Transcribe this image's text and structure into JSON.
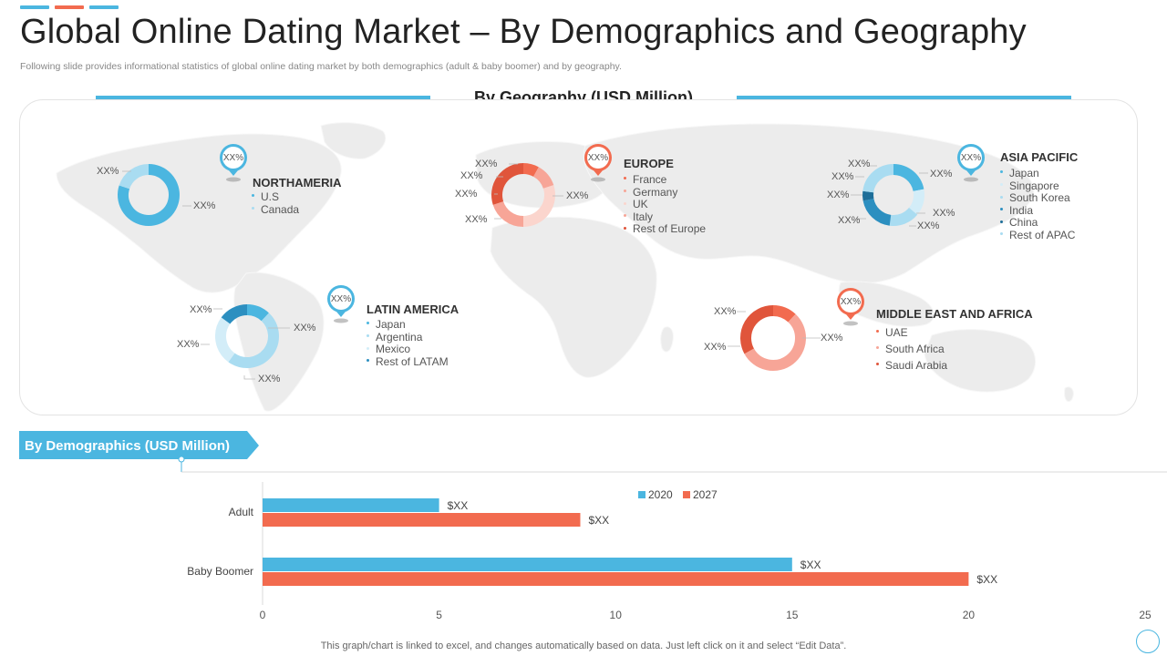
{
  "colors": {
    "blue": "#4bb6e0",
    "blue_dark": "#2c8fc0",
    "blue_darker": "#1d6e99",
    "blue_light": "#a9dcf1",
    "blue_pale": "#d3edf8",
    "red": "#f26b4f",
    "red_light": "#f7a597",
    "red_pale": "#fbd5cd",
    "map": "#ececec"
  },
  "header": {
    "title": "Global Online Dating Market – By Demographics and Geography",
    "subtitle": "Following slide provides informational statistics of global online dating market by both demographics (adult & baby boomer) and by geography."
  },
  "geography": {
    "heading": "By Geography (USD Million)",
    "regions": {
      "north_america": {
        "title": "NORTHAMERIA",
        "pin": "XX%",
        "items": [
          "U.S",
          "Canada"
        ],
        "item_colors": [
          "#4bb6e0",
          "#a9dcf1"
        ],
        "shares": [
          80,
          20
        ],
        "labels": [
          "XX%",
          "XX%"
        ]
      },
      "europe": {
        "title": "EUROPE",
        "pin": "XX%",
        "items": [
          "France",
          "Germany",
          "UK",
          "Italy",
          "Rest of Europe"
        ],
        "item_colors": [
          "#f26b4f",
          "#f7a597",
          "#fbd5cd",
          "#f7a597",
          "#e0553b"
        ],
        "shares": [
          8,
          12,
          30,
          20,
          30
        ],
        "labels": [
          "XX%",
          "XX%",
          "XX%",
          "XX%",
          "XX%"
        ]
      },
      "asia_pacific": {
        "title": "ASIA PACIFIC",
        "pin": "XX%",
        "items": [
          "Japan",
          "Singapore",
          "South Korea",
          "India",
          "China",
          "Rest of APAC"
        ],
        "item_colors": [
          "#4bb6e0",
          "#d3edf8",
          "#a9dcf1",
          "#2c8fc0",
          "#1d6e99",
          "#a9dcf1"
        ],
        "shares": [
          22,
          14,
          16,
          20,
          5,
          23
        ],
        "labels": [
          "XX%",
          "XX%",
          "XX%",
          "XX%",
          "XX%",
          "XX%"
        ]
      },
      "latin_america": {
        "title": "LATIN AMERICA",
        "pin": "XX%",
        "items": [
          "Japan",
          "Argentina",
          "Mexico",
          "Rest of LATAM"
        ],
        "item_colors": [
          "#4bb6e0",
          "#a9dcf1",
          "#d3edf8",
          "#2c8fc0"
        ],
        "shares": [
          12,
          48,
          25,
          15
        ],
        "labels": [
          "XX%",
          "XX%",
          "XX%",
          "XX%"
        ]
      },
      "middle_east_africa": {
        "title": "MIDDLE EAST AND AFRICA",
        "pin": "XX%",
        "items": [
          "UAE",
          "South Africa",
          "Saudi Arabia"
        ],
        "item_colors": [
          "#f26b4f",
          "#f7a597",
          "#e0553b"
        ],
        "shares": [
          12,
          55,
          33
        ],
        "labels": [
          "XX%",
          "XX%",
          "XX%"
        ]
      }
    }
  },
  "demographics": {
    "heading": "By Demographics (USD Million)"
  },
  "chart_data": {
    "type": "bar",
    "orientation": "horizontal",
    "title": "By Demographics (USD Million)",
    "categories": [
      "Adult",
      "Baby Boomer"
    ],
    "series": [
      {
        "name": "2020",
        "values": [
          5,
          15
        ],
        "data_labels": [
          "$XX",
          "$XX"
        ],
        "color": "#4bb6e0"
      },
      {
        "name": "2027",
        "values": [
          9,
          20
        ],
        "data_labels": [
          "$XX",
          "$XX"
        ],
        "color": "#f26b4f"
      }
    ],
    "xlim": [
      0,
      25
    ],
    "x_ticks": [
      0,
      5,
      10,
      15,
      20,
      25
    ],
    "legend_position": "top",
    "grid": false
  },
  "footer": {
    "note": "This graph/chart is linked to excel,  and changes automatically based on data. Just left click on it and select “Edit Data”."
  }
}
